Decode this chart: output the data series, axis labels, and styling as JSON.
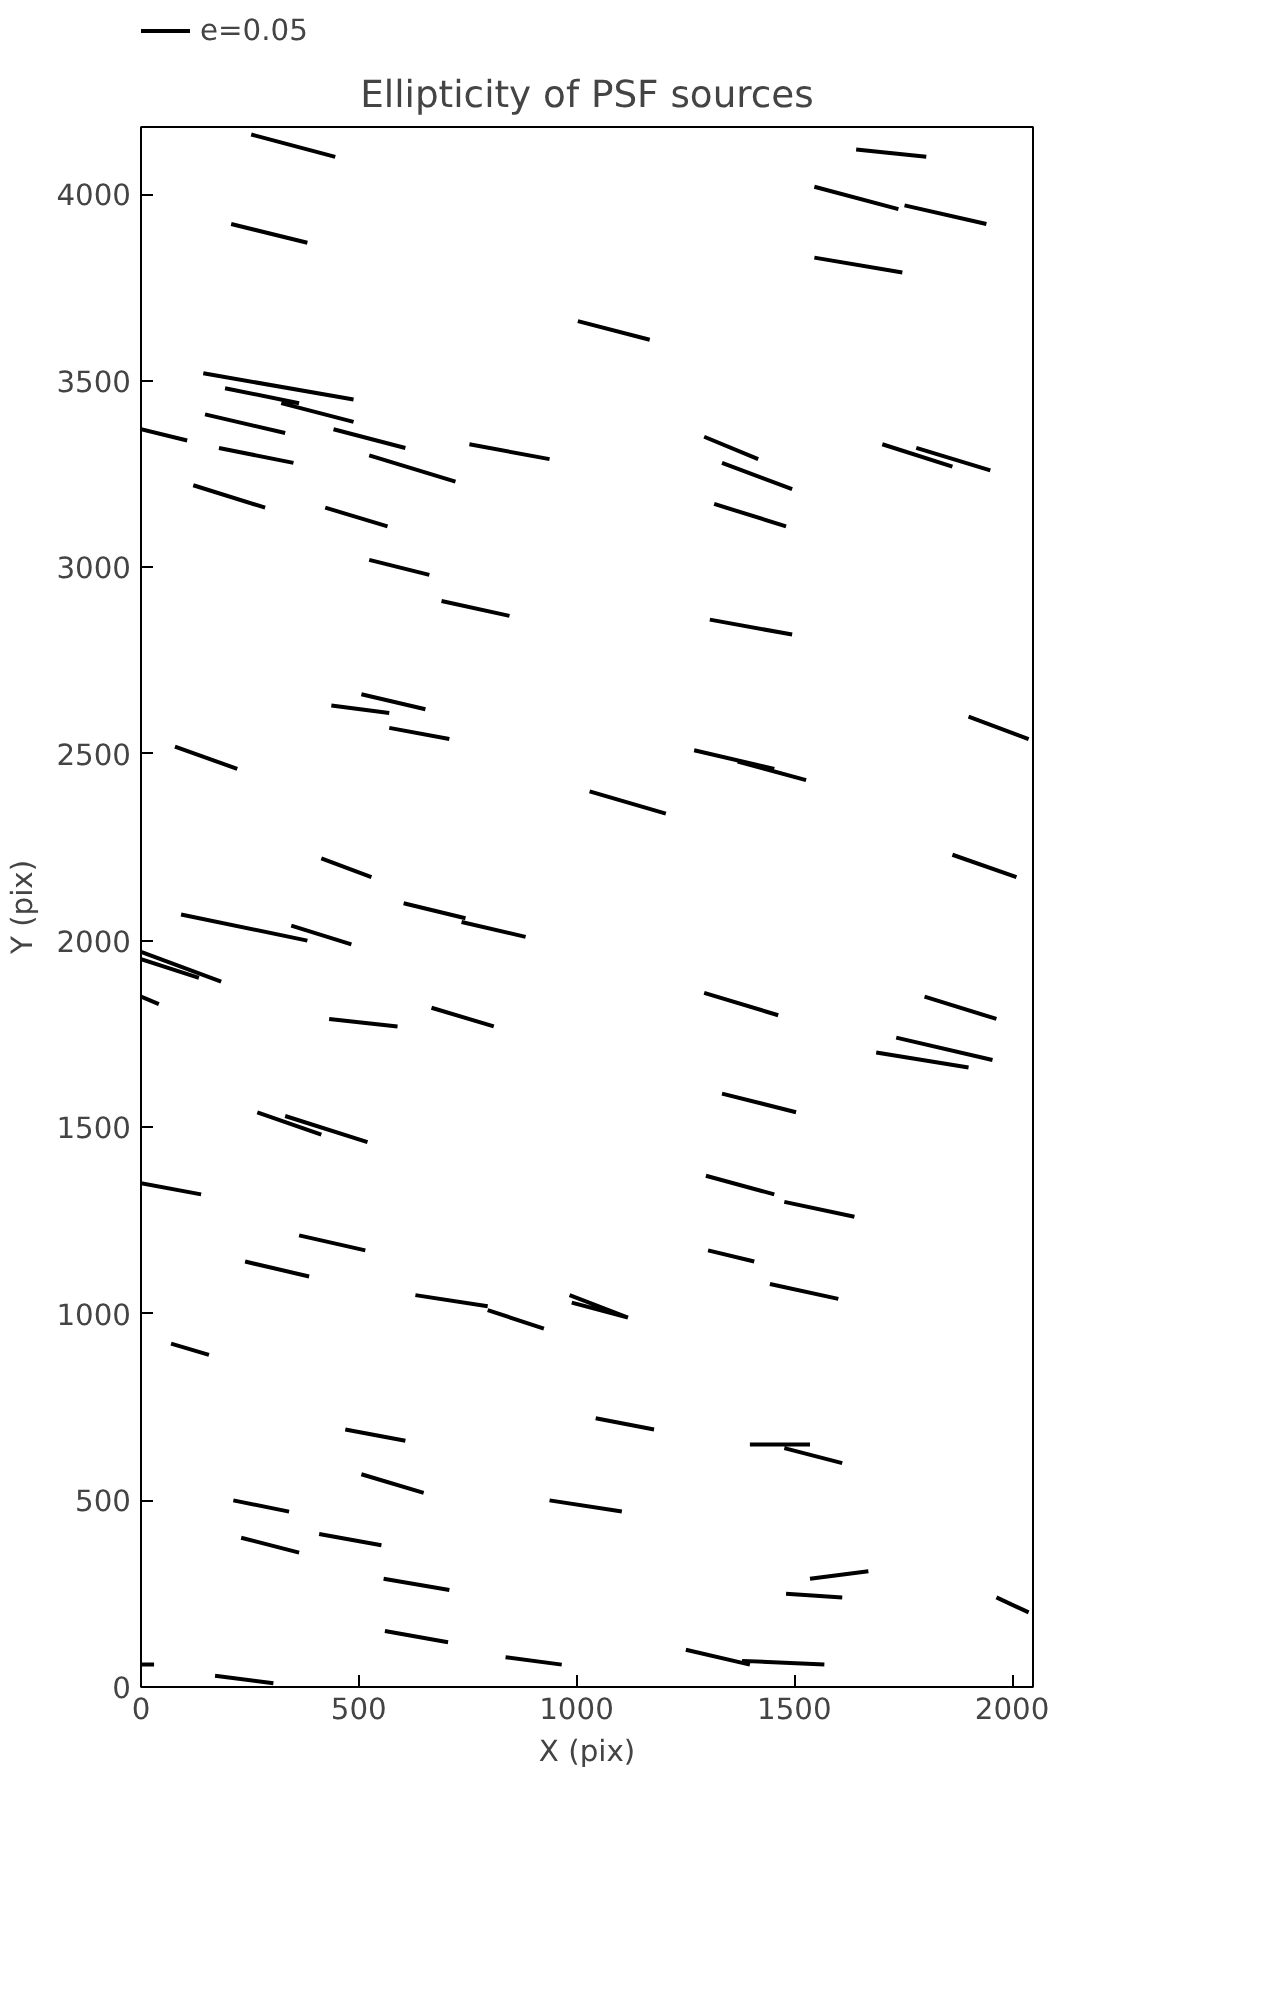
{
  "chart_data": {
    "type": "line",
    "title": "Ellipticity of PSF sources",
    "xlabel": "X (pix)",
    "ylabel": "Y (pix)",
    "xlim": [
      0,
      2048
    ],
    "ylim": [
      0,
      4180
    ],
    "xticks": [
      0,
      500,
      1000,
      1500,
      2000
    ],
    "yticks": [
      0,
      500,
      1000,
      1500,
      2000,
      2500,
      3000,
      3500,
      4000
    ],
    "grid": false,
    "legend": "top left",
    "marker": "none",
    "line_style": "solid",
    "series": [
      {
        "name": "e=0.05",
        "color": "#000000",
        "x": [
          253,
          446,
          null,
          1642,
          1803,
          null,
          207,
          382,
          null,
          1546,
          1739,
          null,
          1753,
          1941,
          null,
          1546,
          1748,
          null,
          1003,
          1168,
          null,
          143,
          488,
          null,
          193,
          363,
          null,
          0,
          106,
          null,
          147,
          331,
          null,
          322,
          488,
          null,
          442,
          607,
          null,
          179,
          350,
          null,
          524,
          722,
          null,
          754,
          938,
          null,
          120,
          285,
          null,
          423,
          566,
          null,
          524,
          662,
          null,
          690,
          846,
          null,
          1293,
          1417,
          null,
          1334,
          1495,
          null,
          1316,
          1481,
          null,
          1306,
          1495,
          null,
          1900,
          2038,
          null,
          1863,
          2010,
          null,
          506,
          653,
          null,
          437,
          570,
          null,
          570,
          708,
          null,
          78,
          221,
          null,
          1030,
          1205,
          null,
          1270,
          1454,
          null,
          1370,
          1527,
          null,
          414,
          529,
          null,
          603,
          745,
          null,
          736,
          883,
          null,
          92,
          382,
          null,
          345,
          483,
          null,
          0,
          184,
          null,
          0,
          133,
          null,
          0,
          41,
          null,
          432,
          589,
          null,
          667,
          810,
          null,
          1293,
          1463,
          null,
          1799,
          1964,
          null,
          1688,
          1900,
          null,
          1734,
          1955,
          null,
          1334,
          1504,
          null,
          267,
          414,
          null,
          331,
          520,
          null,
          0,
          138,
          null,
          1297,
          1454,
          null,
          1477,
          1638,
          null,
          363,
          515,
          null,
          239,
          386,
          null,
          630,
          796,
          null,
          796,
          925,
          null,
          984,
          1118,
          null,
          989,
          1118,
          null,
          1302,
          1408,
          null,
          1444,
          1601,
          null,
          69,
          156,
          null,
          1044,
          1178,
          null,
          469,
          607,
          null,
          506,
          649,
          null,
          938,
          1104,
          null,
          212,
          340,
          null,
          230,
          363,
          null,
          409,
          552,
          null,
          557,
          708,
          null,
          1536,
          1670,
          null,
          1481,
          1610,
          null,
          560,
          705,
          null,
          837,
          966,
          null,
          1251,
          1398,
          null,
          1380,
          1569,
          null,
          170,
          304,
          null,
          0,
          30,
          null,
          1964,
          2038,
          null,
          1398,
          1536,
          null,
          1477,
          1610,
          null,
          1702,
          1863,
          null,
          1780,
          1950
        ],
        "values": [
          4160,
          4100,
          null,
          4120,
          4100,
          null,
          3920,
          3870,
          null,
          4020,
          3960,
          null,
          3970,
          3920,
          null,
          3830,
          3790,
          null,
          3660,
          3610,
          null,
          3520,
          3450,
          null,
          3480,
          3440,
          null,
          3370,
          3340,
          null,
          3410,
          3360,
          null,
          3440,
          3390,
          null,
          3370,
          3320,
          null,
          3320,
          3280,
          null,
          3300,
          3230,
          null,
          3330,
          3290,
          null,
          3220,
          3160,
          null,
          3160,
          3110,
          null,
          3020,
          2980,
          null,
          2910,
          2870,
          null,
          3350,
          3290,
          null,
          3280,
          3210,
          null,
          3170,
          3110,
          null,
          2860,
          2820,
          null,
          2600,
          2540,
          null,
          2230,
          2170,
          null,
          2660,
          2620,
          null,
          2630,
          2610,
          null,
          2570,
          2540,
          null,
          2520,
          2460,
          null,
          2400,
          2340,
          null,
          2510,
          2460,
          null,
          2480,
          2430,
          null,
          2220,
          2170,
          null,
          2100,
          2060,
          null,
          2050,
          2010,
          null,
          2070,
          2000,
          null,
          2040,
          1990,
          null,
          1970,
          1890,
          null,
          1950,
          1900,
          null,
          1850,
          1830,
          null,
          1790,
          1770,
          null,
          1820,
          1770,
          null,
          1860,
          1800,
          null,
          1850,
          1790,
          null,
          1700,
          1660,
          null,
          1740,
          1680,
          null,
          1590,
          1540,
          null,
          1540,
          1480,
          null,
          1530,
          1460,
          null,
          1350,
          1320,
          null,
          1370,
          1320,
          null,
          1300,
          1260,
          null,
          1210,
          1170,
          null,
          1140,
          1100,
          null,
          1050,
          1020,
          null,
          1010,
          960,
          null,
          1050,
          990,
          null,
          1030,
          990,
          null,
          1170,
          1140,
          null,
          1080,
          1040,
          null,
          920,
          890,
          null,
          720,
          690,
          null,
          690,
          660,
          null,
          570,
          520,
          null,
          500,
          470,
          null,
          500,
          470,
          null,
          400,
          360,
          null,
          410,
          380,
          null,
          290,
          260,
          null,
          290,
          310,
          null,
          250,
          240,
          null,
          150,
          120,
          null,
          80,
          60,
          null,
          100,
          60,
          null,
          70,
          60,
          null,
          30,
          10,
          null,
          60,
          60,
          null,
          240,
          200,
          null,
          650,
          650,
          null,
          640,
          600,
          null,
          3330,
          3270,
          null,
          3320,
          3260
        ]
      }
    ]
  }
}
